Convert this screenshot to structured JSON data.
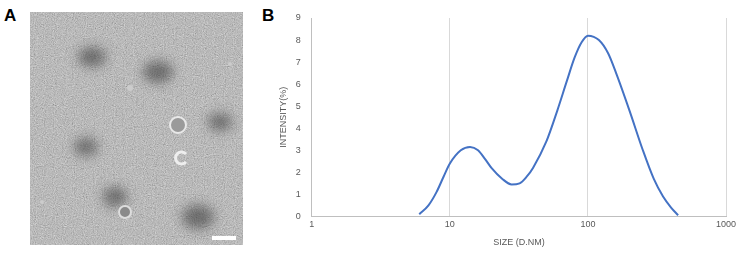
{
  "panel_labels": [
    "A",
    "B"
  ],
  "chart_data": {
    "type": "line",
    "xlabel": "SIZE (D.NM)",
    "ylabel": "INTENSITY(%)",
    "log": "x",
    "x": [
      6,
      7,
      8,
      9,
      10,
      12,
      14,
      16,
      18,
      20,
      24,
      28,
      32,
      36,
      40,
      50,
      60,
      70,
      80,
      90,
      100,
      120,
      140,
      160,
      200,
      250,
      300,
      350,
      400,
      450
    ],
    "values": [
      0.1,
      0.5,
      1.1,
      1.8,
      2.4,
      3.0,
      3.15,
      3.0,
      2.6,
      2.2,
      1.7,
      1.45,
      1.5,
      1.8,
      2.2,
      3.4,
      4.8,
      6.1,
      7.2,
      7.9,
      8.2,
      8.0,
      7.4,
      6.5,
      4.8,
      3.0,
      1.7,
      0.9,
      0.4,
      0.05
    ],
    "color": "#4472c4",
    "xlim": [
      1,
      1000
    ],
    "xticks": [
      1,
      10,
      100,
      1000
    ],
    "ylim": [
      0,
      9
    ],
    "yticks": [
      0,
      1,
      2,
      3,
      4,
      5,
      6,
      7,
      8,
      9
    ],
    "grid": true
  }
}
